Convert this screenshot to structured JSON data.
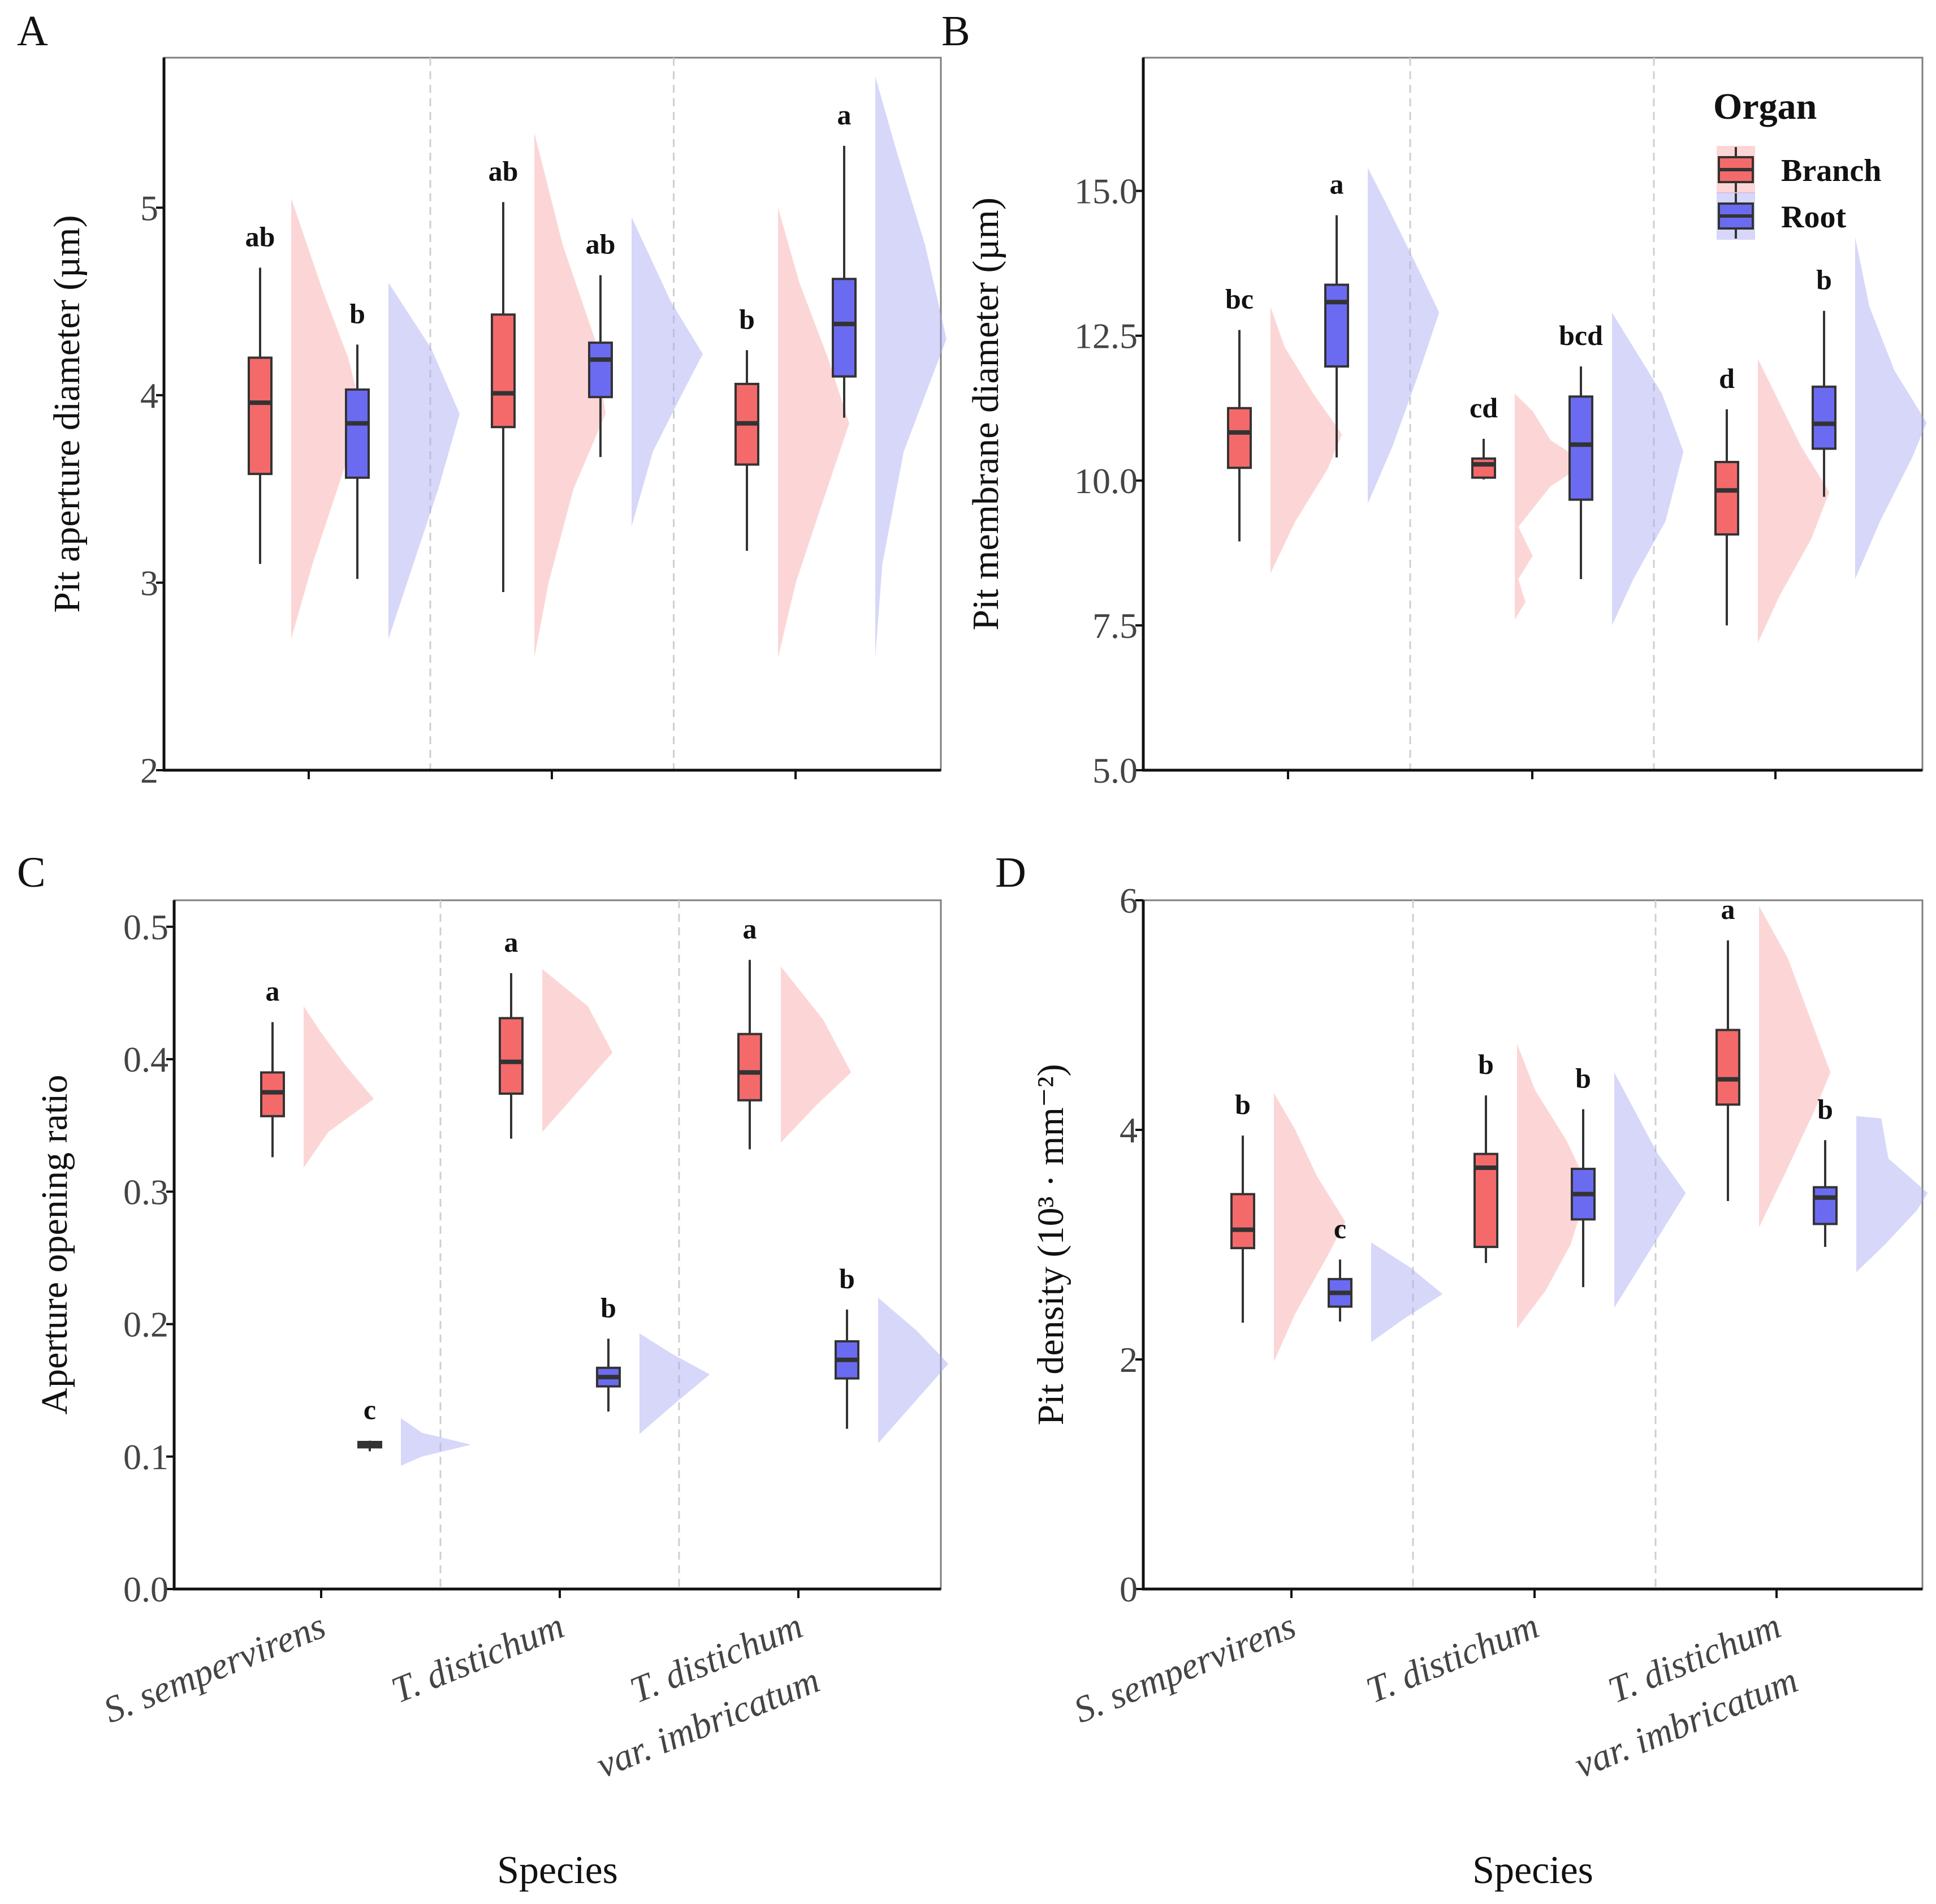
{
  "figure": {
    "x_axis_title": "Species",
    "legend": {
      "title": "Organ",
      "entries": [
        {
          "label": "Branch",
          "fill": "#F46A6A",
          "density_fill": "#F8A5A5"
        },
        {
          "label": "Root",
          "fill": "#6B6BF2",
          "density_fill": "#A6A6F5"
        }
      ],
      "placement": "top-right of panel B"
    },
    "species_lines": [
      [
        "S. sempervirens"
      ],
      [
        "T. distichum"
      ],
      [
        "T. distichum",
        "var. imbricatum"
      ]
    ]
  },
  "chart_data": [
    {
      "panel": "A",
      "type": "boxplot-with-half-violin",
      "ylabel": "Pit  aperture  diameter  (µm)",
      "ylim": [
        2,
        5.8
      ],
      "yticks": [
        2,
        3,
        4,
        5
      ],
      "ytick_labels": [
        "2",
        "3",
        "4",
        "5"
      ],
      "groups": [
        {
          "species": "S. sempervirens",
          "organ": "Branch",
          "min": 3.1,
          "q1": 3.58,
          "median": 3.96,
          "q3": 4.2,
          "max": 4.68,
          "letter": "ab",
          "density": [
            [
              2.7,
              0
            ],
            [
              3.1,
              0.3
            ],
            [
              3.5,
              0.65
            ],
            [
              3.9,
              1
            ],
            [
              4.2,
              0.8
            ],
            [
              4.55,
              0.45
            ],
            [
              5.05,
              0
            ]
          ]
        },
        {
          "species": "S. sempervirens",
          "organ": "Root",
          "min": 3.02,
          "q1": 3.56,
          "median": 3.85,
          "q3": 4.03,
          "max": 4.27,
          "letter": "b",
          "density": [
            [
              2.7,
              0
            ],
            [
              3.1,
              0.35
            ],
            [
              3.5,
              0.7
            ],
            [
              3.9,
              1
            ],
            [
              4.25,
              0.6
            ],
            [
              4.6,
              0
            ]
          ]
        },
        {
          "species": "T. distichum",
          "organ": "Branch",
          "min": 2.95,
          "q1": 3.83,
          "median": 4.01,
          "q3": 4.43,
          "max": 5.03,
          "letter": "ab",
          "density": [
            [
              2.6,
              0
            ],
            [
              3.0,
              0.2
            ],
            [
              3.5,
              0.55
            ],
            [
              3.9,
              1
            ],
            [
              4.3,
              0.85
            ],
            [
              4.8,
              0.4
            ],
            [
              5.4,
              0
            ]
          ]
        },
        {
          "species": "T. distichum",
          "organ": "Root",
          "min": 3.67,
          "q1": 3.99,
          "median": 4.19,
          "q3": 4.28,
          "max": 4.64,
          "letter": "ab",
          "density": [
            [
              3.3,
              0
            ],
            [
              3.7,
              0.3
            ],
            [
              4.0,
              0.7
            ],
            [
              4.22,
              1
            ],
            [
              4.5,
              0.55
            ],
            [
              4.95,
              0
            ]
          ]
        },
        {
          "species": "T. distichum var. imbricatum",
          "organ": "Branch",
          "min": 3.17,
          "q1": 3.63,
          "median": 3.85,
          "q3": 4.06,
          "max": 4.24,
          "letter": "b",
          "density": [
            [
              2.6,
              0
            ],
            [
              3.0,
              0.25
            ],
            [
              3.4,
              0.6
            ],
            [
              3.85,
              1
            ],
            [
              4.2,
              0.7
            ],
            [
              4.6,
              0.3
            ],
            [
              5.0,
              0
            ]
          ]
        },
        {
          "species": "T. distichum var. imbricatum",
          "organ": "Root",
          "min": 3.88,
          "q1": 4.1,
          "median": 4.38,
          "q3": 4.62,
          "max": 5.33,
          "letter": "a",
          "density": [
            [
              2.6,
              0
            ],
            [
              3.1,
              0.1
            ],
            [
              3.7,
              0.4
            ],
            [
              4.3,
              1
            ],
            [
              4.8,
              0.7
            ],
            [
              5.3,
              0.3
            ],
            [
              5.7,
              0
            ]
          ]
        }
      ]
    },
    {
      "panel": "B",
      "type": "boxplot-with-half-violin",
      "ylabel": "Pit  membrane  diameter  (µm)",
      "ylim": [
        5,
        17.3
      ],
      "yticks": [
        5,
        7.5,
        10,
        12.5,
        15
      ],
      "ytick_labels": [
        "5.0",
        "7.5",
        "10.0",
        "12.5",
        "15.0"
      ],
      "groups": [
        {
          "species": "S. sempervirens",
          "organ": "Branch",
          "min": 8.95,
          "q1": 10.22,
          "median": 10.83,
          "q3": 11.25,
          "max": 12.6,
          "letter": "bc",
          "density": [
            [
              8.4,
              0
            ],
            [
              9.3,
              0.35
            ],
            [
              10.2,
              0.8
            ],
            [
              10.8,
              1
            ],
            [
              11.5,
              0.6
            ],
            [
              12.3,
              0.2
            ],
            [
              13.0,
              0
            ]
          ]
        },
        {
          "species": "S. sempervirens",
          "organ": "Root",
          "min": 10.4,
          "q1": 11.97,
          "median": 13.08,
          "q3": 13.38,
          "max": 14.58,
          "letter": "a",
          "density": [
            [
              9.6,
              0
            ],
            [
              10.6,
              0.35
            ],
            [
              11.8,
              0.7
            ],
            [
              12.9,
              1
            ],
            [
              13.8,
              0.65
            ],
            [
              14.8,
              0.25
            ],
            [
              15.4,
              0
            ]
          ]
        },
        {
          "species": "T. distichum",
          "organ": "Branch",
          "min": 10.02,
          "q1": 10.05,
          "median": 10.28,
          "q3": 10.38,
          "max": 10.72,
          "letter": "cd",
          "density": [
            [
              7.6,
              0
            ],
            [
              7.9,
              0.15
            ],
            [
              8.3,
              0.05
            ],
            [
              8.7,
              0.25
            ],
            [
              9.2,
              0.05
            ],
            [
              9.9,
              0.5
            ],
            [
              10.3,
              1
            ],
            [
              10.7,
              0.5
            ],
            [
              11.2,
              0.25
            ],
            [
              11.5,
              0
            ]
          ]
        },
        {
          "species": "T. distichum",
          "organ": "Root",
          "min": 8.3,
          "q1": 9.67,
          "median": 10.62,
          "q3": 11.45,
          "max": 11.97,
          "letter": "bcd",
          "density": [
            [
              7.5,
              0
            ],
            [
              8.3,
              0.3
            ],
            [
              9.3,
              0.75
            ],
            [
              10.5,
              1
            ],
            [
              11.5,
              0.7
            ],
            [
              12.3,
              0.3
            ],
            [
              12.9,
              0
            ]
          ]
        },
        {
          "species": "T. distichum var. imbricatum",
          "organ": "Branch",
          "min": 7.5,
          "q1": 9.07,
          "median": 9.83,
          "q3": 10.32,
          "max": 11.23,
          "letter": "d",
          "density": [
            [
              7.2,
              0
            ],
            [
              8.0,
              0.3
            ],
            [
              9.0,
              0.75
            ],
            [
              9.8,
              1
            ],
            [
              10.6,
              0.6
            ],
            [
              11.6,
              0.2
            ],
            [
              12.1,
              0
            ]
          ]
        },
        {
          "species": "T. distichum var. imbricatum",
          "organ": "Root",
          "min": 9.72,
          "q1": 10.55,
          "median": 10.98,
          "q3": 11.62,
          "max": 12.93,
          "letter": "b",
          "density": [
            [
              8.3,
              0
            ],
            [
              9.3,
              0.35
            ],
            [
              10.4,
              0.8
            ],
            [
              11.0,
              1
            ],
            [
              11.9,
              0.55
            ],
            [
              13.0,
              0.2
            ],
            [
              14.2,
              0
            ]
          ]
        }
      ]
    },
    {
      "panel": "C",
      "type": "boxplot-with-half-violin",
      "ylabel": "Aperture opening ratio",
      "ylim": [
        0,
        0.52
      ],
      "yticks": [
        0,
        0.1,
        0.2,
        0.3,
        0.4,
        0.5
      ],
      "ytick_labels": [
        "0.0",
        "0.1",
        "0.2",
        "0.3",
        "0.4",
        "0.5"
      ],
      "groups": [
        {
          "species": "S. sempervirens",
          "organ": "Branch",
          "min": 0.326,
          "q1": 0.357,
          "median": 0.375,
          "q3": 0.39,
          "max": 0.428,
          "letter": "a",
          "density": [
            [
              0.318,
              0
            ],
            [
              0.345,
              0.35
            ],
            [
              0.37,
              1
            ],
            [
              0.395,
              0.6
            ],
            [
              0.42,
              0.25
            ],
            [
              0.44,
              0
            ]
          ]
        },
        {
          "species": "S. sempervirens",
          "organ": "Root",
          "min": 0.104,
          "q1": 0.107,
          "median": 0.109,
          "q3": 0.111,
          "max": 0.112,
          "letter": "c",
          "density": [
            [
              0.093,
              0
            ],
            [
              0.1,
              0.3
            ],
            [
              0.109,
              1
            ],
            [
              0.118,
              0.3
            ],
            [
              0.129,
              0
            ]
          ]
        },
        {
          "species": "T. distichum",
          "organ": "Branch",
          "min": 0.34,
          "q1": 0.374,
          "median": 0.398,
          "q3": 0.431,
          "max": 0.465,
          "letter": "a",
          "density": [
            [
              0.345,
              0
            ],
            [
              0.375,
              0.5
            ],
            [
              0.405,
              1
            ],
            [
              0.44,
              0.65
            ],
            [
              0.468,
              0
            ]
          ]
        },
        {
          "species": "T. distichum",
          "organ": "Root",
          "min": 0.134,
          "q1": 0.153,
          "median": 0.16,
          "q3": 0.167,
          "max": 0.189,
          "letter": "b",
          "density": [
            [
              0.117,
              0
            ],
            [
              0.14,
              0.5
            ],
            [
              0.162,
              1
            ],
            [
              0.178,
              0.45
            ],
            [
              0.193,
              0
            ]
          ]
        },
        {
          "species": "T. distichum var. imbricatum",
          "organ": "Branch",
          "min": 0.332,
          "q1": 0.369,
          "median": 0.39,
          "q3": 0.419,
          "max": 0.475,
          "letter": "a",
          "density": [
            [
              0.337,
              0
            ],
            [
              0.365,
              0.5
            ],
            [
              0.39,
              1
            ],
            [
              0.43,
              0.6
            ],
            [
              0.47,
              0
            ]
          ]
        },
        {
          "species": "T. distichum var. imbricatum",
          "organ": "Root",
          "min": 0.121,
          "q1": 0.159,
          "median": 0.173,
          "q3": 0.187,
          "max": 0.211,
          "letter": "b",
          "density": [
            [
              0.11,
              0
            ],
            [
              0.14,
              0.5
            ],
            [
              0.17,
              1
            ],
            [
              0.195,
              0.55
            ],
            [
              0.22,
              0
            ]
          ]
        }
      ]
    },
    {
      "panel": "D",
      "type": "boxplot-with-half-violin",
      "ylabel": "Pit  density  (10³ · mm⁻²)",
      "ylim": [
        0,
        6
      ],
      "yticks": [
        0,
        2,
        4,
        6
      ],
      "ytick_labels": [
        "0",
        "2",
        "4",
        "6"
      ],
      "groups": [
        {
          "species": "S. sempervirens",
          "organ": "Branch",
          "min": 2.32,
          "q1": 2.97,
          "median": 3.13,
          "q3": 3.44,
          "max": 3.95,
          "letter": "b",
          "density": [
            [
              1.98,
              0
            ],
            [
              2.4,
              0.3
            ],
            [
              2.9,
              0.75
            ],
            [
              3.2,
              1
            ],
            [
              3.6,
              0.6
            ],
            [
              4.0,
              0.3
            ],
            [
              4.32,
              0
            ]
          ]
        },
        {
          "species": "S. sempervirens",
          "organ": "Root",
          "min": 2.33,
          "q1": 2.46,
          "median": 2.58,
          "q3": 2.7,
          "max": 2.87,
          "letter": "c",
          "density": [
            [
              2.15,
              0
            ],
            [
              2.35,
              0.45
            ],
            [
              2.57,
              1
            ],
            [
              2.8,
              0.55
            ],
            [
              3.02,
              0
            ]
          ]
        },
        {
          "species": "T. distichum",
          "organ": "Branch",
          "min": 2.84,
          "q1": 2.98,
          "median": 3.67,
          "q3": 3.79,
          "max": 4.3,
          "letter": "b",
          "density": [
            [
              2.27,
              0
            ],
            [
              2.6,
              0.4
            ],
            [
              3.0,
              0.75
            ],
            [
              3.5,
              1
            ],
            [
              3.9,
              0.7
            ],
            [
              4.35,
              0.25
            ],
            [
              4.75,
              0
            ]
          ]
        },
        {
          "species": "T. distichum",
          "organ": "Root",
          "min": 2.63,
          "q1": 3.22,
          "median": 3.44,
          "q3": 3.66,
          "max": 4.18,
          "letter": "b",
          "density": [
            [
              2.45,
              0
            ],
            [
              2.8,
              0.35
            ],
            [
              3.2,
              0.75
            ],
            [
              3.45,
              1
            ],
            [
              3.8,
              0.6
            ],
            [
              4.15,
              0.3
            ],
            [
              4.5,
              0
            ]
          ]
        },
        {
          "species": "T. distichum var. imbricatum",
          "organ": "Branch",
          "min": 3.38,
          "q1": 4.22,
          "median": 4.44,
          "q3": 4.87,
          "max": 5.65,
          "letter": "a",
          "density": [
            [
              3.15,
              0
            ],
            [
              3.6,
              0.35
            ],
            [
              4.2,
              0.8
            ],
            [
              4.5,
              1
            ],
            [
              5.0,
              0.7
            ],
            [
              5.5,
              0.4
            ],
            [
              5.95,
              0
            ]
          ]
        },
        {
          "species": "T. distichum var. imbricatum",
          "organ": "Root",
          "min": 2.98,
          "q1": 3.18,
          "median": 3.41,
          "q3": 3.5,
          "max": 3.91,
          "letter": "b",
          "density": [
            [
              2.76,
              0
            ],
            [
              3.0,
              0.4
            ],
            [
              3.3,
              0.85
            ],
            [
              3.45,
              1
            ],
            [
              3.75,
              0.45
            ],
            [
              4.1,
              0.35
            ],
            [
              4.12,
              0
            ]
          ]
        }
      ]
    }
  ]
}
